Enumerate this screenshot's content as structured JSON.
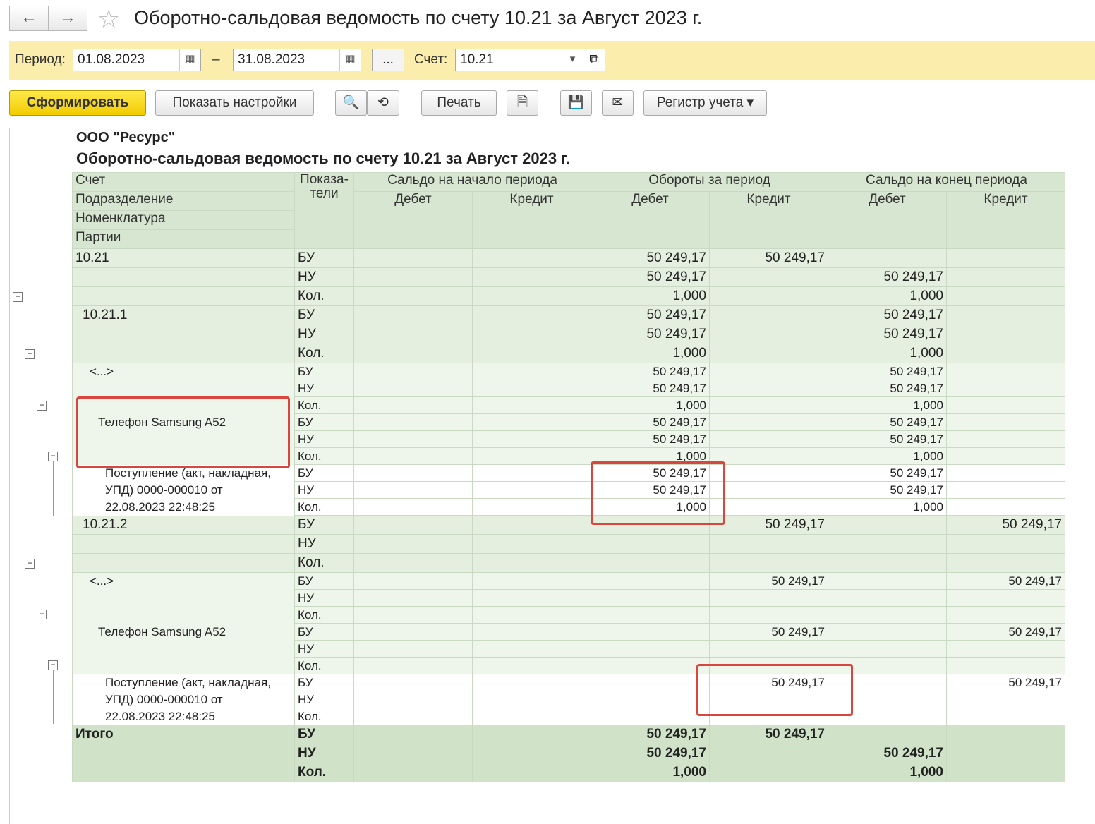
{
  "title": "Оборотно-сальдовая ведомость по счету 10.21 за Август 2023 г.",
  "filter": {
    "period_label": "Период:",
    "from": "01.08.2023",
    "dash": "–",
    "to": "31.08.2023",
    "more": "...",
    "account_label": "Счет:",
    "account": "10.21"
  },
  "toolbar": {
    "generate": "Сформировать",
    "settings": "Показать настройки",
    "print": "Печать",
    "register": "Регистр учета"
  },
  "report": {
    "org": "ООО \"Ресурс\"",
    "title": "Оборотно-сальдовая ведомость по счету 10.21 за Август 2023 г.",
    "h": {
      "acc": "Счет",
      "dep": "Подразделение",
      "nom": "Номенклатура",
      "part": "Партии",
      "ind": "Показа-\nтели",
      "open": "Сальдо на начало периода",
      "turn": "Обороты за период",
      "close": "Сальдо на конец периода",
      "dt": "Дебет",
      "kt": "Кредит"
    },
    "rows": [
      [
        "10.21",
        "g",
        "БУ",
        "",
        "",
        "50 249,17",
        "50 249,17",
        "",
        ""
      ],
      [
        "",
        "g",
        "НУ",
        "",
        "",
        "50 249,17",
        "",
        "50 249,17",
        ""
      ],
      [
        "",
        "g",
        "Кол.",
        "",
        "",
        "1,000",
        "",
        "1,000",
        ""
      ],
      [
        "10.21.1",
        "g",
        "БУ",
        "",
        "",
        "50 249,17",
        "",
        "50 249,17",
        ""
      ],
      [
        "",
        "g",
        "НУ",
        "",
        "",
        "50 249,17",
        "",
        "50 249,17",
        ""
      ],
      [
        "",
        "g",
        "Кол.",
        "",
        "",
        "1,000",
        "",
        "1,000",
        ""
      ],
      [
        "<...>",
        "ls",
        "БУ",
        "",
        "",
        "50 249,17",
        "",
        "50 249,17",
        ""
      ],
      [
        "",
        "ls",
        "НУ",
        "",
        "",
        "50 249,17",
        "",
        "50 249,17",
        ""
      ],
      [
        "",
        "ls",
        "Кол.",
        "",
        "",
        "1,000",
        "",
        "1,000",
        ""
      ],
      [
        "Телефон Samsung A52",
        "ls",
        "БУ",
        "",
        "",
        "50 249,17",
        "",
        "50 249,17",
        ""
      ],
      [
        "",
        "ls",
        "НУ",
        "",
        "",
        "50 249,17",
        "",
        "50 249,17",
        ""
      ],
      [
        "",
        "ls",
        "Кол.",
        "",
        "",
        "1,000",
        "",
        "1,000",
        ""
      ],
      [
        "Поступление (акт, накладная,",
        "ws",
        "БУ",
        "",
        "",
        "50 249,17",
        "",
        "50 249,17",
        ""
      ],
      [
        "УПД) 0000-000010 от",
        "ws",
        "НУ",
        "",
        "",
        "50 249,17",
        "",
        "50 249,17",
        ""
      ],
      [
        "22.08.2023 22:48:25",
        "ws",
        "Кол.",
        "",
        "",
        "1,000",
        "",
        "1,000",
        ""
      ],
      [
        "10.21.2",
        "g",
        "БУ",
        "",
        "",
        "",
        "50 249,17",
        "",
        "50 249,17"
      ],
      [
        "",
        "g",
        "НУ",
        "",
        "",
        "",
        "",
        "",
        ""
      ],
      [
        "",
        "g",
        "Кол.",
        "",
        "",
        "",
        "",
        "",
        ""
      ],
      [
        "<...>",
        "ls",
        "БУ",
        "",
        "",
        "",
        "50 249,17",
        "",
        "50 249,17"
      ],
      [
        "",
        "ls",
        "НУ",
        "",
        "",
        "",
        "",
        "",
        ""
      ],
      [
        "",
        "ls",
        "Кол.",
        "",
        "",
        "",
        "",
        "",
        ""
      ],
      [
        "Телефон Samsung A52",
        "ls",
        "БУ",
        "",
        "",
        "",
        "50 249,17",
        "",
        "50 249,17"
      ],
      [
        "",
        "ls",
        "НУ",
        "",
        "",
        "",
        "",
        "",
        ""
      ],
      [
        "",
        "ls",
        "Кол.",
        "",
        "",
        "",
        "",
        "",
        ""
      ],
      [
        "Поступление (акт, накладная,",
        "ws",
        "БУ",
        "",
        "",
        "",
        "50 249,17",
        "",
        "50 249,17"
      ],
      [
        "УПД) 0000-000010 от",
        "ws",
        "НУ",
        "",
        "",
        "",
        "",
        "",
        ""
      ],
      [
        "22.08.2023 22:48:25",
        "ws",
        "Кол.",
        "",
        "",
        "",
        "",
        "",
        ""
      ],
      [
        "Итого",
        "t",
        "БУ",
        "",
        "",
        "50 249,17",
        "50 249,17",
        "",
        ""
      ],
      [
        "",
        "t",
        "НУ",
        "",
        "",
        "50 249,17",
        "",
        "50 249,17",
        ""
      ],
      [
        "",
        "t",
        "Кол.",
        "",
        "",
        "1,000",
        "",
        "1,000",
        ""
      ]
    ]
  }
}
